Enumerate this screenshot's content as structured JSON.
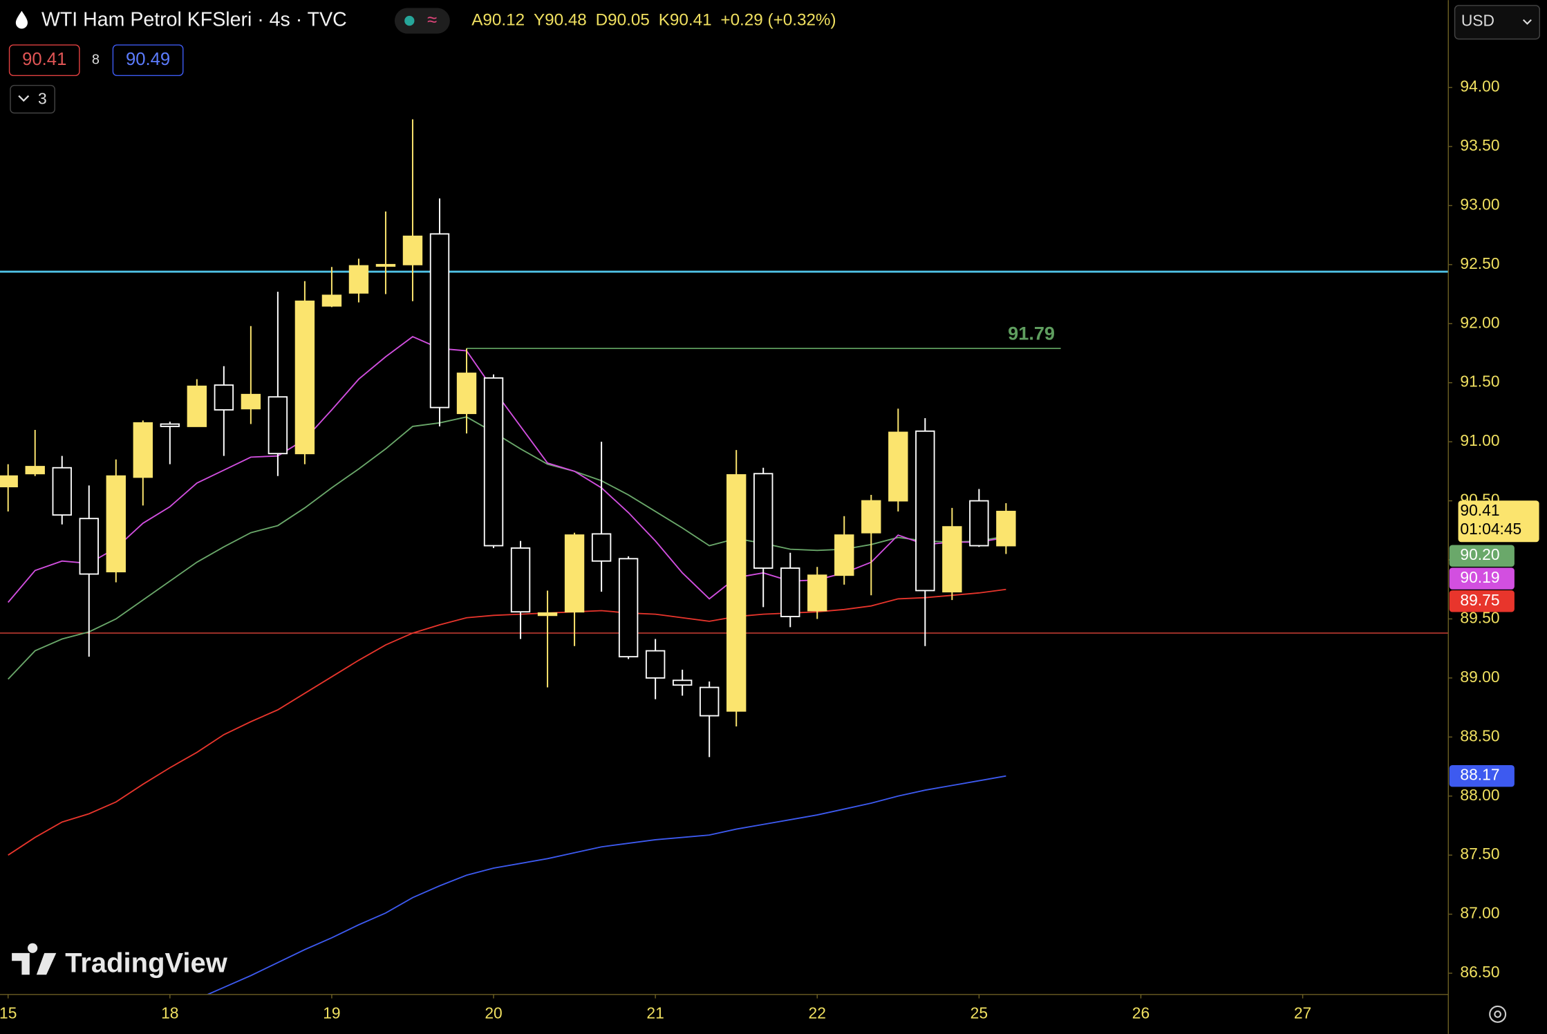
{
  "header": {
    "title": "WTI Ham Petrol KFSleri · 4s · TVC",
    "ohlc": [
      "A90.12",
      "Y90.48",
      "D90.05",
      "K90.41",
      "+0.29 (+0.32%)"
    ],
    "sell": "90.41",
    "spread": "8",
    "buy": "90.49",
    "indicators": "3",
    "currency": "USD",
    "watermark": "TradingView"
  },
  "chart_data": {
    "type": "candlestick",
    "up_color": "#fbe46e",
    "down_color": "#ffffff",
    "x": [
      0,
      1,
      2,
      3,
      4,
      5,
      6,
      7,
      8,
      9,
      10,
      11,
      12,
      13,
      14,
      15,
      16,
      17,
      18,
      19,
      20,
      21,
      22,
      23,
      24,
      25,
      26,
      27,
      28,
      29,
      30,
      31,
      32,
      33,
      34,
      35,
      36,
      37
    ],
    "open": [
      90.62,
      90.73,
      90.78,
      90.35,
      89.9,
      90.7,
      91.15,
      91.13,
      91.48,
      91.28,
      91.38,
      90.9,
      92.15,
      92.26,
      92.49,
      92.5,
      92.76,
      91.24,
      91.54,
      90.1,
      89.53,
      89.56,
      90.22,
      90.01,
      89.23,
      88.98,
      88.92,
      88.72,
      90.73,
      89.93,
      89.57,
      89.87,
      90.23,
      90.5,
      91.09,
      89.73,
      90.5,
      90.12
    ],
    "high": [
      90.81,
      91.1,
      90.88,
      90.63,
      90.85,
      91.18,
      91.17,
      91.53,
      91.64,
      91.98,
      92.27,
      92.36,
      92.48,
      92.55,
      92.95,
      93.73,
      93.06,
      91.79,
      91.57,
      90.16,
      89.74,
      90.23,
      91.0,
      90.03,
      89.33,
      89.07,
      88.97,
      90.93,
      90.78,
      90.06,
      89.94,
      90.37,
      90.55,
      91.28,
      91.2,
      90.44,
      90.6,
      90.48
    ],
    "low": [
      90.41,
      90.71,
      90.3,
      89.18,
      89.81,
      90.46,
      90.81,
      91.13,
      90.88,
      91.15,
      90.71,
      90.81,
      92.14,
      92.18,
      92.25,
      92.19,
      91.13,
      91.07,
      90.1,
      89.33,
      88.92,
      89.27,
      89.73,
      89.16,
      88.82,
      88.85,
      88.33,
      88.59,
      89.6,
      89.43,
      89.5,
      89.79,
      89.7,
      90.41,
      89.27,
      89.66,
      90.11,
      90.05
    ],
    "close": [
      90.71,
      90.79,
      90.38,
      89.88,
      90.71,
      91.16,
      91.13,
      91.47,
      91.27,
      91.4,
      90.9,
      92.19,
      92.24,
      92.49,
      92.5,
      92.74,
      91.29,
      91.58,
      90.12,
      89.56,
      89.55,
      90.21,
      89.99,
      89.18,
      89.0,
      88.94,
      88.68,
      90.72,
      89.93,
      89.52,
      89.87,
      90.21,
      90.5,
      91.08,
      89.74,
      90.28,
      90.12,
      90.41
    ],
    "countdown": "01:04:45",
    "series": [
      {
        "color": "#6aa86a",
        "last_label": "90.20",
        "values": [
          88.99,
          89.23,
          89.33,
          89.39,
          89.5,
          89.66,
          89.82,
          89.98,
          90.11,
          90.23,
          90.29,
          90.44,
          90.61,
          90.77,
          90.94,
          91.13,
          91.16,
          91.21,
          91.08,
          90.94,
          90.81,
          90.75,
          90.67,
          90.55,
          90.41,
          90.27,
          90.12,
          90.18,
          90.14,
          90.09,
          90.08,
          90.09,
          90.13,
          90.19,
          90.16,
          90.15,
          90.16,
          90.2
        ]
      },
      {
        "color": "#d24fe0",
        "last_label": "90.19",
        "values": [
          89.64,
          89.91,
          89.99,
          89.97,
          90.1,
          90.31,
          90.45,
          90.65,
          90.76,
          90.87,
          90.88,
          91.02,
          91.27,
          91.53,
          91.72,
          91.89,
          91.79,
          91.77,
          91.44,
          91.13,
          90.82,
          90.75,
          90.61,
          90.4,
          90.16,
          89.89,
          89.67,
          89.85,
          89.89,
          89.82,
          89.83,
          89.89,
          89.98,
          90.21,
          90.13,
          90.15,
          90.15,
          90.19
        ]
      },
      {
        "color": "#e8352c",
        "last_label": "89.75",
        "values": [
          87.5,
          87.65,
          87.78,
          87.85,
          87.95,
          88.1,
          88.24,
          88.37,
          88.52,
          88.63,
          88.73,
          88.87,
          89.01,
          89.15,
          89.28,
          89.38,
          89.45,
          89.51,
          89.53,
          89.54,
          89.55,
          89.56,
          89.57,
          89.55,
          89.54,
          89.51,
          89.48,
          89.52,
          89.54,
          89.55,
          89.56,
          89.58,
          89.61,
          89.67,
          89.68,
          89.7,
          89.72,
          89.75
        ]
      },
      {
        "color": "#3d5af0",
        "last_label": "88.17",
        "values": [
          null,
          null,
          null,
          null,
          null,
          null,
          null,
          86.28,
          86.38,
          86.48,
          86.59,
          86.7,
          86.8,
          86.91,
          87.01,
          87.14,
          87.24,
          87.33,
          87.39,
          87.43,
          87.47,
          87.52,
          87.57,
          87.6,
          87.63,
          87.65,
          87.67,
          87.72,
          87.76,
          87.8,
          87.84,
          87.89,
          87.94,
          88.0,
          88.05,
          88.09,
          88.13,
          88.17
        ]
      }
    ],
    "hlines": [
      {
        "value": 92.44,
        "color": "#4fc3e8"
      },
      {
        "value": 89.38,
        "color": "#e0443a"
      }
    ],
    "ray": {
      "value": 91.79,
      "x": [
        17,
        39.03
      ],
      "color": "#5f9e5f"
    },
    "xlim": [
      -0.3,
      53.4
    ],
    "ylim": [
      86.32,
      94.74
    ],
    "xticks": [
      {
        "value": 0,
        "label": "15"
      },
      {
        "value": 6,
        "label": "18"
      },
      {
        "value": 12,
        "label": "19"
      },
      {
        "value": 18,
        "label": "20"
      },
      {
        "value": 24,
        "label": "21"
      },
      {
        "value": 30,
        "label": "22"
      },
      {
        "value": 36,
        "label": "25"
      },
      {
        "value": 42,
        "label": "26"
      },
      {
        "value": 48,
        "label": "27"
      }
    ],
    "yticks": [
      {
        "value": 86.5,
        "label": "86.50"
      },
      {
        "value": 87,
        "label": "87.00"
      },
      {
        "value": 87.5,
        "label": "87.50"
      },
      {
        "value": 88,
        "label": "88.00"
      },
      {
        "value": 88.5,
        "label": "88.50"
      },
      {
        "value": 89,
        "label": "89.00"
      },
      {
        "value": 89.5,
        "label": "89.50"
      },
      {
        "value": 90,
        "label": "90.00"
      },
      {
        "value": 90.5,
        "label": "90.50"
      },
      {
        "value": 91,
        "label": "91.00"
      },
      {
        "value": 91.5,
        "label": "91.50"
      },
      {
        "value": 92,
        "label": "92.00"
      },
      {
        "value": 92.5,
        "label": "92.50"
      },
      {
        "value": 93,
        "label": "93.00"
      },
      {
        "value": 93.5,
        "label": "93.50"
      },
      {
        "value": 94,
        "label": "94.00"
      }
    ]
  }
}
